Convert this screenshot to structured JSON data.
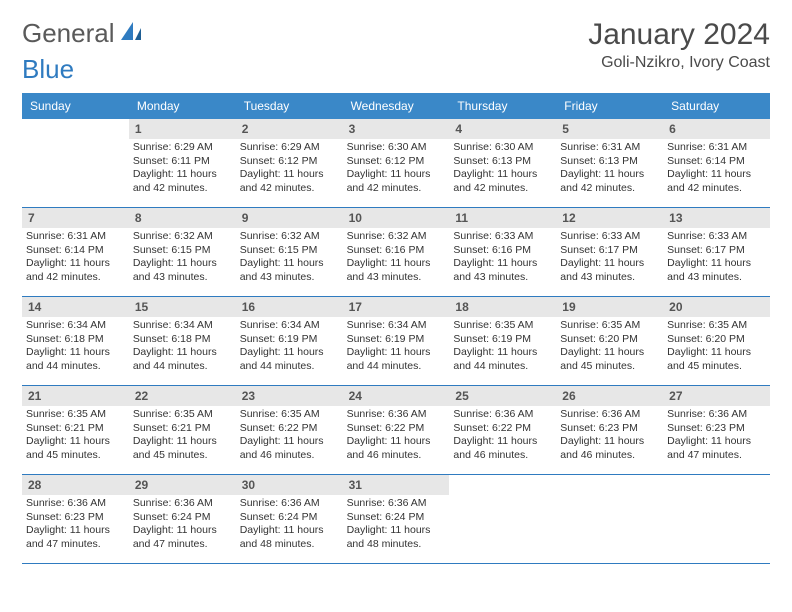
{
  "brand": {
    "word1": "General",
    "word2": "Blue"
  },
  "colors": {
    "header_bg": "#3a88c8",
    "header_text": "#ffffff",
    "daynum_bg": "#e7e7e7",
    "daynum_text": "#555555",
    "row_border": "#2f7bc0",
    "body_text": "#333333",
    "brand_gray": "#5a5a5a",
    "brand_blue": "#2f7bc0"
  },
  "title": {
    "month": "January 2024",
    "location": "Goli-Nzikro, Ivory Coast"
  },
  "weekdays": [
    "Sunday",
    "Monday",
    "Tuesday",
    "Wednesday",
    "Thursday",
    "Friday",
    "Saturday"
  ],
  "layout": {
    "columns": 7,
    "first_blank_cells": 1
  },
  "days": [
    {
      "n": "1",
      "sunrise": "Sunrise: 6:29 AM",
      "sunset": "Sunset: 6:11 PM",
      "daylight": "Daylight: 11 hours and 42 minutes."
    },
    {
      "n": "2",
      "sunrise": "Sunrise: 6:29 AM",
      "sunset": "Sunset: 6:12 PM",
      "daylight": "Daylight: 11 hours and 42 minutes."
    },
    {
      "n": "3",
      "sunrise": "Sunrise: 6:30 AM",
      "sunset": "Sunset: 6:12 PM",
      "daylight": "Daylight: 11 hours and 42 minutes."
    },
    {
      "n": "4",
      "sunrise": "Sunrise: 6:30 AM",
      "sunset": "Sunset: 6:13 PM",
      "daylight": "Daylight: 11 hours and 42 minutes."
    },
    {
      "n": "5",
      "sunrise": "Sunrise: 6:31 AM",
      "sunset": "Sunset: 6:13 PM",
      "daylight": "Daylight: 11 hours and 42 minutes."
    },
    {
      "n": "6",
      "sunrise": "Sunrise: 6:31 AM",
      "sunset": "Sunset: 6:14 PM",
      "daylight": "Daylight: 11 hours and 42 minutes."
    },
    {
      "n": "7",
      "sunrise": "Sunrise: 6:31 AM",
      "sunset": "Sunset: 6:14 PM",
      "daylight": "Daylight: 11 hours and 42 minutes."
    },
    {
      "n": "8",
      "sunrise": "Sunrise: 6:32 AM",
      "sunset": "Sunset: 6:15 PM",
      "daylight": "Daylight: 11 hours and 43 minutes."
    },
    {
      "n": "9",
      "sunrise": "Sunrise: 6:32 AM",
      "sunset": "Sunset: 6:15 PM",
      "daylight": "Daylight: 11 hours and 43 minutes."
    },
    {
      "n": "10",
      "sunrise": "Sunrise: 6:32 AM",
      "sunset": "Sunset: 6:16 PM",
      "daylight": "Daylight: 11 hours and 43 minutes."
    },
    {
      "n": "11",
      "sunrise": "Sunrise: 6:33 AM",
      "sunset": "Sunset: 6:16 PM",
      "daylight": "Daylight: 11 hours and 43 minutes."
    },
    {
      "n": "12",
      "sunrise": "Sunrise: 6:33 AM",
      "sunset": "Sunset: 6:17 PM",
      "daylight": "Daylight: 11 hours and 43 minutes."
    },
    {
      "n": "13",
      "sunrise": "Sunrise: 6:33 AM",
      "sunset": "Sunset: 6:17 PM",
      "daylight": "Daylight: 11 hours and 43 minutes."
    },
    {
      "n": "14",
      "sunrise": "Sunrise: 6:34 AM",
      "sunset": "Sunset: 6:18 PM",
      "daylight": "Daylight: 11 hours and 44 minutes."
    },
    {
      "n": "15",
      "sunrise": "Sunrise: 6:34 AM",
      "sunset": "Sunset: 6:18 PM",
      "daylight": "Daylight: 11 hours and 44 minutes."
    },
    {
      "n": "16",
      "sunrise": "Sunrise: 6:34 AM",
      "sunset": "Sunset: 6:19 PM",
      "daylight": "Daylight: 11 hours and 44 minutes."
    },
    {
      "n": "17",
      "sunrise": "Sunrise: 6:34 AM",
      "sunset": "Sunset: 6:19 PM",
      "daylight": "Daylight: 11 hours and 44 minutes."
    },
    {
      "n": "18",
      "sunrise": "Sunrise: 6:35 AM",
      "sunset": "Sunset: 6:19 PM",
      "daylight": "Daylight: 11 hours and 44 minutes."
    },
    {
      "n": "19",
      "sunrise": "Sunrise: 6:35 AM",
      "sunset": "Sunset: 6:20 PM",
      "daylight": "Daylight: 11 hours and 45 minutes."
    },
    {
      "n": "20",
      "sunrise": "Sunrise: 6:35 AM",
      "sunset": "Sunset: 6:20 PM",
      "daylight": "Daylight: 11 hours and 45 minutes."
    },
    {
      "n": "21",
      "sunrise": "Sunrise: 6:35 AM",
      "sunset": "Sunset: 6:21 PM",
      "daylight": "Daylight: 11 hours and 45 minutes."
    },
    {
      "n": "22",
      "sunrise": "Sunrise: 6:35 AM",
      "sunset": "Sunset: 6:21 PM",
      "daylight": "Daylight: 11 hours and 45 minutes."
    },
    {
      "n": "23",
      "sunrise": "Sunrise: 6:35 AM",
      "sunset": "Sunset: 6:22 PM",
      "daylight": "Daylight: 11 hours and 46 minutes."
    },
    {
      "n": "24",
      "sunrise": "Sunrise: 6:36 AM",
      "sunset": "Sunset: 6:22 PM",
      "daylight": "Daylight: 11 hours and 46 minutes."
    },
    {
      "n": "25",
      "sunrise": "Sunrise: 6:36 AM",
      "sunset": "Sunset: 6:22 PM",
      "daylight": "Daylight: 11 hours and 46 minutes."
    },
    {
      "n": "26",
      "sunrise": "Sunrise: 6:36 AM",
      "sunset": "Sunset: 6:23 PM",
      "daylight": "Daylight: 11 hours and 46 minutes."
    },
    {
      "n": "27",
      "sunrise": "Sunrise: 6:36 AM",
      "sunset": "Sunset: 6:23 PM",
      "daylight": "Daylight: 11 hours and 47 minutes."
    },
    {
      "n": "28",
      "sunrise": "Sunrise: 6:36 AM",
      "sunset": "Sunset: 6:23 PM",
      "daylight": "Daylight: 11 hours and 47 minutes."
    },
    {
      "n": "29",
      "sunrise": "Sunrise: 6:36 AM",
      "sunset": "Sunset: 6:24 PM",
      "daylight": "Daylight: 11 hours and 47 minutes."
    },
    {
      "n": "30",
      "sunrise": "Sunrise: 6:36 AM",
      "sunset": "Sunset: 6:24 PM",
      "daylight": "Daylight: 11 hours and 48 minutes."
    },
    {
      "n": "31",
      "sunrise": "Sunrise: 6:36 AM",
      "sunset": "Sunset: 6:24 PM",
      "daylight": "Daylight: 11 hours and 48 minutes."
    }
  ]
}
